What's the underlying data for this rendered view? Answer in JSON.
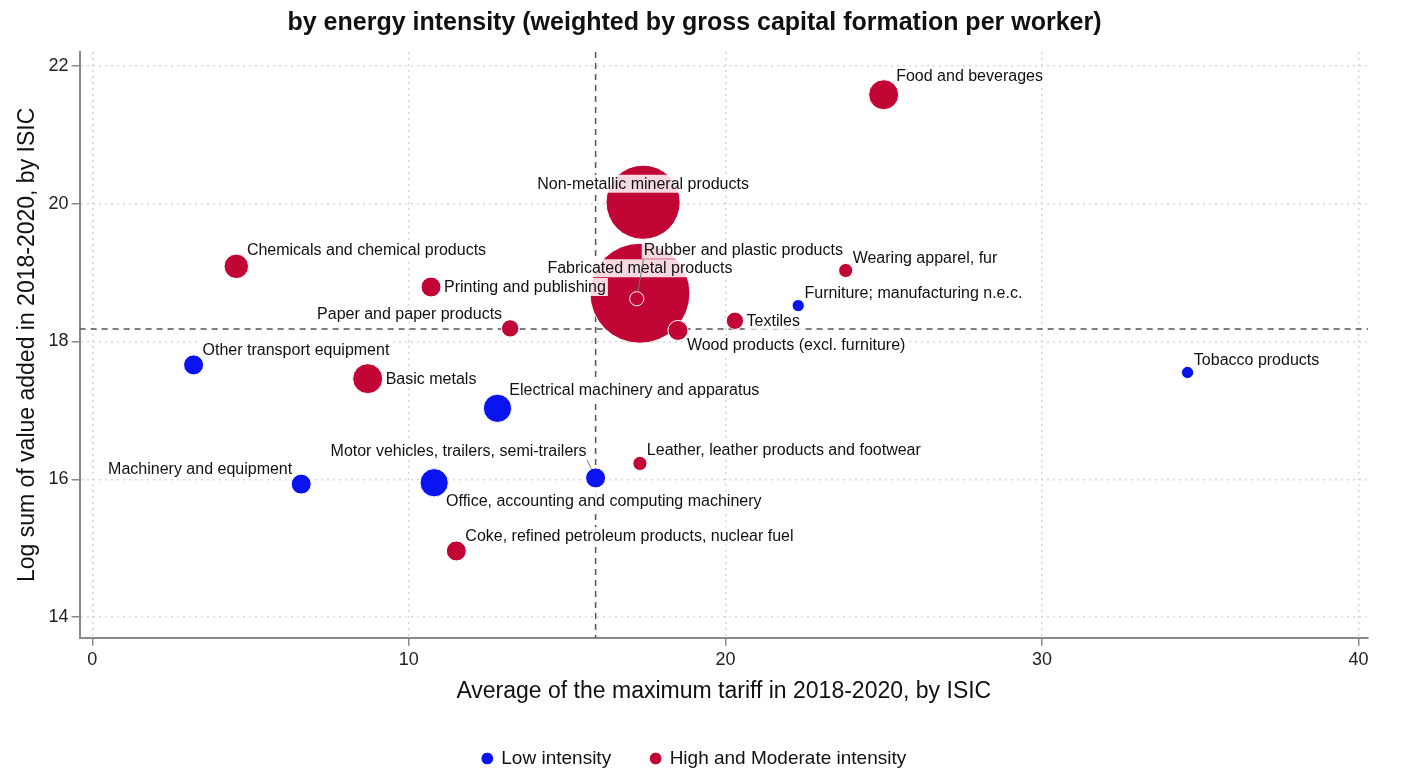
{
  "chart_data": {
    "type": "bubble",
    "title": "by energy intensity (weighted by gross capital formation per worker)",
    "xlabel": "Average of the maximum tariff in 2018-2020, by ISIC",
    "ylabel": "Log sum of value added in 2018-2020, by ISIC",
    "xlim": [
      -0.4,
      40.3
    ],
    "xticks": [
      0,
      10,
      20,
      30,
      40
    ],
    "ylim": [
      13.7,
      22.2
    ],
    "yticks": [
      14,
      16,
      18,
      20,
      22
    ],
    "grid": true,
    "legend": "bottom",
    "series": [
      {
        "name": "Low intensity",
        "color": "#0a14f0",
        "x": [
          3.2,
          12.8,
          6.6,
          10.8,
          15.9,
          22.3,
          34.6
        ],
        "values": [
          17.66,
          17.03,
          15.93,
          15.95,
          16.02,
          18.52,
          17.55
        ],
        "sizes": [
          0.04,
          0.08,
          0.04,
          0.08,
          0.04,
          0.015,
          0.015
        ]
      },
      {
        "name": "High and Moderate intensity",
        "color": "#c10534",
        "x": [
          25.0,
          17.4,
          17.3,
          17.2,
          4.55,
          8.7,
          10.7,
          13.2,
          18.5,
          20.3,
          23.8,
          17.3,
          11.5
        ],
        "values": [
          21.58,
          20.02,
          18.7,
          18.62,
          19.09,
          17.46,
          18.79,
          18.19,
          18.16,
          18.3,
          19.03,
          16.23,
          14.96
        ],
        "sizes": [
          0.09,
          0.55,
          1,
          0.02,
          0.06,
          0.09,
          0.04,
          0.03,
          0.04,
          0.03,
          0.02,
          0.02,
          0.04
        ]
      }
    ],
    "ref_lines": [
      {
        "axis": "x",
        "value": 15.9,
        "color": "#555555",
        "line_style": "dashed"
      },
      {
        "axis": "y",
        "value": 18.18,
        "color": "#555555",
        "line_style": "dashed"
      }
    ],
    "annotations": [
      {
        "text": "Fabricated metal products",
        "x": 17.3,
        "y": 18.7
      },
      {
        "text": "Non-metallic mineral products",
        "x": 17.4,
        "y": 20.02
      },
      {
        "text": "Food and beverages",
        "x": 25.0,
        "y": 21.58
      },
      {
        "text": "Rubber and plastic products",
        "x": 17.2,
        "y": 18.62
      },
      {
        "text": "Chemicals and chemical products",
        "x": 4.55,
        "y": 19.09
      },
      {
        "text": "Printing and publishing",
        "x": 10.7,
        "y": 18.79
      },
      {
        "text": "Paper and paper products",
        "x": 13.2,
        "y": 18.19
      },
      {
        "text": "Wood products (excl. furniture)",
        "x": 18.5,
        "y": 18.16
      },
      {
        "text": "Textiles",
        "x": 20.3,
        "y": 18.3
      },
      {
        "text": "Wearing apparel, fur",
        "x": 23.8,
        "y": 19.03
      },
      {
        "text": "Furniture; manufacturing n.e.c.",
        "x": 22.3,
        "y": 18.52
      },
      {
        "text": "Tobacco products",
        "x": 34.6,
        "y": 17.55
      },
      {
        "text": "Other transport equipment",
        "x": 3.2,
        "y": 17.66
      },
      {
        "text": "Basic metals",
        "x": 8.7,
        "y": 17.46
      },
      {
        "text": "Electrical machinery and apparatus",
        "x": 12.8,
        "y": 17.03
      },
      {
        "text": "Leather, leather products and footwear",
        "x": 17.3,
        "y": 16.23
      },
      {
        "text": "Machinery and equipment",
        "x": 6.6,
        "y": 15.93
      },
      {
        "text": "Office, accounting and computing machinery",
        "x": 10.8,
        "y": 15.95
      },
      {
        "text": "Motor vehicles, trailers, semi-trailers",
        "x": 15.9,
        "y": 16.02
      },
      {
        "text": "Coke, refined petroleum products, nuclear fuel",
        "x": 11.5,
        "y": 14.96
      }
    ]
  }
}
